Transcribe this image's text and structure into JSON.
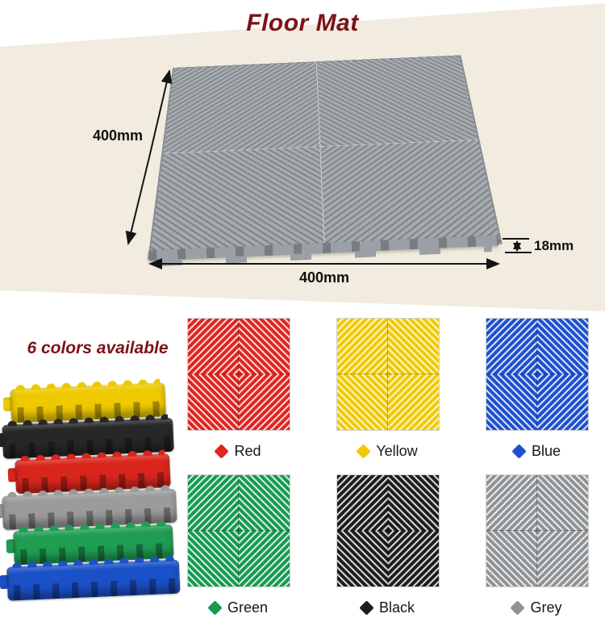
{
  "page": {
    "title": "Floor Mat",
    "accent_color": "#7c1216",
    "backdrop_color": "#f1ecdf"
  },
  "product": {
    "tile_color": "#a6abaf",
    "dimensions": {
      "width": "400mm",
      "height": "400mm",
      "thickness": "18mm"
    }
  },
  "colors_section": {
    "heading": "6 colors available",
    "swatches": [
      {
        "name": "Red",
        "hex": "#e02420"
      },
      {
        "name": "Yellow",
        "hex": "#f2ca00"
      },
      {
        "name": "Blue",
        "hex": "#1c50cf"
      },
      {
        "name": "Green",
        "hex": "#169a52"
      },
      {
        "name": "Black",
        "hex": "#1d1d1d"
      },
      {
        "name": "Grey",
        "hex": "#8f9396"
      }
    ],
    "stack_colors_top_to_bottom": [
      "#eec900",
      "#272727",
      "#d9261c",
      "#9b9b9b",
      "#1f9e53",
      "#1b51c8"
    ]
  }
}
